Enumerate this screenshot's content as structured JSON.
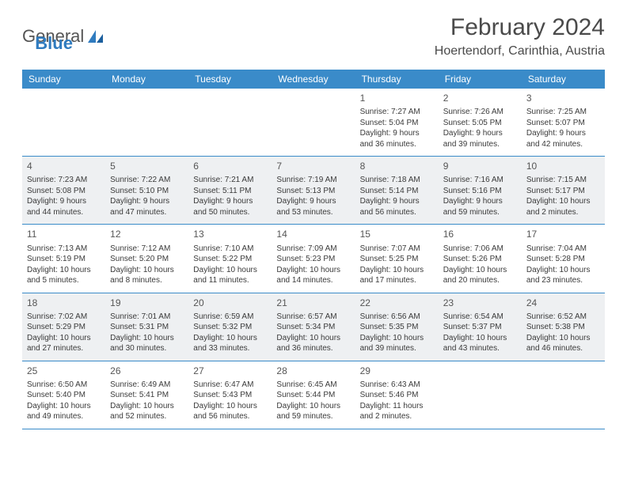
{
  "brand": {
    "word1": "General",
    "word2": "Blue"
  },
  "title": "February 2024",
  "location": "Hoertendorf, Carinthia, Austria",
  "dayHeaders": [
    "Sunday",
    "Monday",
    "Tuesday",
    "Wednesday",
    "Thursday",
    "Friday",
    "Saturday"
  ],
  "colors": {
    "headerBar": "#3a8bc9",
    "shadedRow": "#eef0f2",
    "bodyText": "#3a3a3a",
    "titleText": "#4a4a4a",
    "ruleLine": "#3a8bc9"
  },
  "layout": {
    "columns": 7,
    "startOffset": 4,
    "cellFontSize": 10,
    "headerFontSize": 12
  },
  "days": [
    {
      "n": 1,
      "sunrise": "7:27 AM",
      "sunset": "5:04 PM",
      "daylight": "9 hours and 36 minutes."
    },
    {
      "n": 2,
      "sunrise": "7:26 AM",
      "sunset": "5:05 PM",
      "daylight": "9 hours and 39 minutes."
    },
    {
      "n": 3,
      "sunrise": "7:25 AM",
      "sunset": "5:07 PM",
      "daylight": "9 hours and 42 minutes."
    },
    {
      "n": 4,
      "sunrise": "7:23 AM",
      "sunset": "5:08 PM",
      "daylight": "9 hours and 44 minutes."
    },
    {
      "n": 5,
      "sunrise": "7:22 AM",
      "sunset": "5:10 PM",
      "daylight": "9 hours and 47 minutes."
    },
    {
      "n": 6,
      "sunrise": "7:21 AM",
      "sunset": "5:11 PM",
      "daylight": "9 hours and 50 minutes."
    },
    {
      "n": 7,
      "sunrise": "7:19 AM",
      "sunset": "5:13 PM",
      "daylight": "9 hours and 53 minutes."
    },
    {
      "n": 8,
      "sunrise": "7:18 AM",
      "sunset": "5:14 PM",
      "daylight": "9 hours and 56 minutes."
    },
    {
      "n": 9,
      "sunrise": "7:16 AM",
      "sunset": "5:16 PM",
      "daylight": "9 hours and 59 minutes."
    },
    {
      "n": 10,
      "sunrise": "7:15 AM",
      "sunset": "5:17 PM",
      "daylight": "10 hours and 2 minutes."
    },
    {
      "n": 11,
      "sunrise": "7:13 AM",
      "sunset": "5:19 PM",
      "daylight": "10 hours and 5 minutes."
    },
    {
      "n": 12,
      "sunrise": "7:12 AM",
      "sunset": "5:20 PM",
      "daylight": "10 hours and 8 minutes."
    },
    {
      "n": 13,
      "sunrise": "7:10 AM",
      "sunset": "5:22 PM",
      "daylight": "10 hours and 11 minutes."
    },
    {
      "n": 14,
      "sunrise": "7:09 AM",
      "sunset": "5:23 PM",
      "daylight": "10 hours and 14 minutes."
    },
    {
      "n": 15,
      "sunrise": "7:07 AM",
      "sunset": "5:25 PM",
      "daylight": "10 hours and 17 minutes."
    },
    {
      "n": 16,
      "sunrise": "7:06 AM",
      "sunset": "5:26 PM",
      "daylight": "10 hours and 20 minutes."
    },
    {
      "n": 17,
      "sunrise": "7:04 AM",
      "sunset": "5:28 PM",
      "daylight": "10 hours and 23 minutes."
    },
    {
      "n": 18,
      "sunrise": "7:02 AM",
      "sunset": "5:29 PM",
      "daylight": "10 hours and 27 minutes."
    },
    {
      "n": 19,
      "sunrise": "7:01 AM",
      "sunset": "5:31 PM",
      "daylight": "10 hours and 30 minutes."
    },
    {
      "n": 20,
      "sunrise": "6:59 AM",
      "sunset": "5:32 PM",
      "daylight": "10 hours and 33 minutes."
    },
    {
      "n": 21,
      "sunrise": "6:57 AM",
      "sunset": "5:34 PM",
      "daylight": "10 hours and 36 minutes."
    },
    {
      "n": 22,
      "sunrise": "6:56 AM",
      "sunset": "5:35 PM",
      "daylight": "10 hours and 39 minutes."
    },
    {
      "n": 23,
      "sunrise": "6:54 AM",
      "sunset": "5:37 PM",
      "daylight": "10 hours and 43 minutes."
    },
    {
      "n": 24,
      "sunrise": "6:52 AM",
      "sunset": "5:38 PM",
      "daylight": "10 hours and 46 minutes."
    },
    {
      "n": 25,
      "sunrise": "6:50 AM",
      "sunset": "5:40 PM",
      "daylight": "10 hours and 49 minutes."
    },
    {
      "n": 26,
      "sunrise": "6:49 AM",
      "sunset": "5:41 PM",
      "daylight": "10 hours and 52 minutes."
    },
    {
      "n": 27,
      "sunrise": "6:47 AM",
      "sunset": "5:43 PM",
      "daylight": "10 hours and 56 minutes."
    },
    {
      "n": 28,
      "sunrise": "6:45 AM",
      "sunset": "5:44 PM",
      "daylight": "10 hours and 59 minutes."
    },
    {
      "n": 29,
      "sunrise": "6:43 AM",
      "sunset": "5:46 PM",
      "daylight": "11 hours and 2 minutes."
    }
  ],
  "labels": {
    "sunrise": "Sunrise: ",
    "sunset": "Sunset: ",
    "daylight": "Daylight: "
  }
}
